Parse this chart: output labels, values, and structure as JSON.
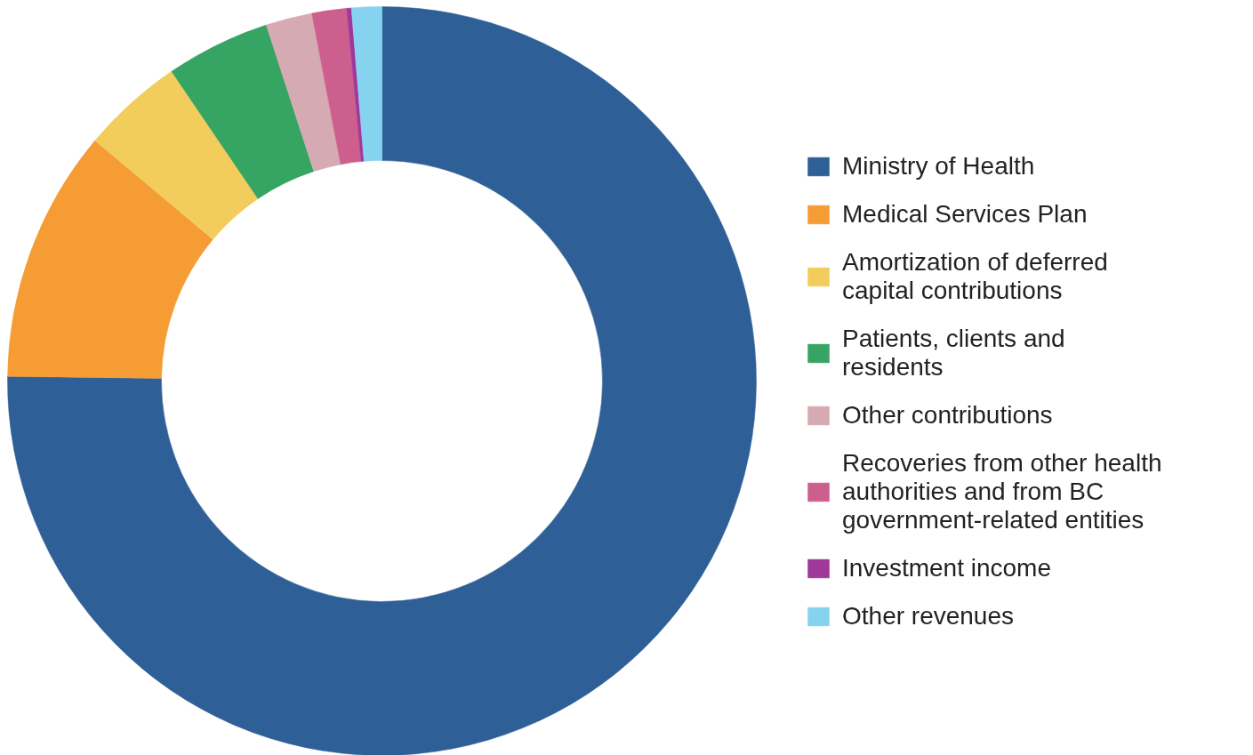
{
  "chart_data": {
    "type": "donut",
    "categories": [
      "Ministry of Health",
      "Medical Services Plan",
      "Amortization of deferred capital contributions",
      "Patients, clients and residents",
      "Other contributions",
      "Recoveries from other health authorities and from BC government-related entities",
      "Investment income",
      "Other revenues"
    ],
    "values": [
      75.2,
      10.9,
      4.4,
      4.5,
      2.0,
      1.5,
      0.2,
      1.3
    ],
    "colors": [
      "#2e5f96",
      "#f59c34",
      "#f2cd5c",
      "#36a463",
      "#d6aab3",
      "#cc5f8e",
      "#a0379a",
      "#86d3f0"
    ],
    "legend": "right"
  }
}
